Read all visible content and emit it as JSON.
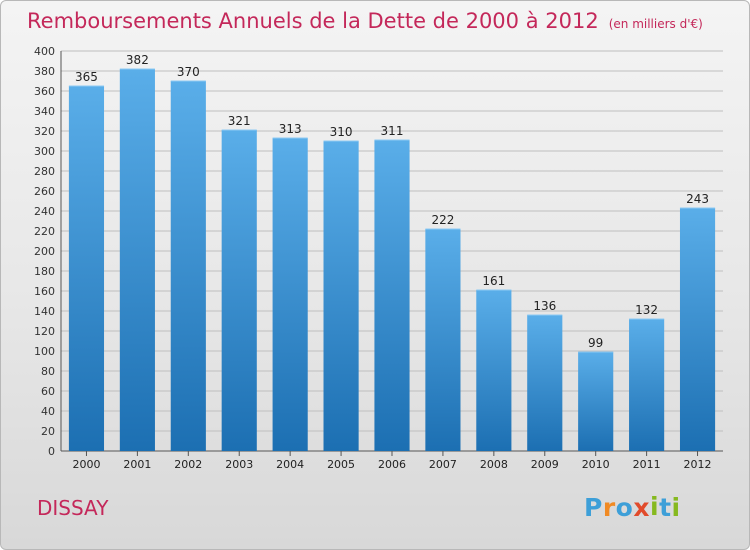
{
  "header": {
    "title": "Remboursements Annuels de la Dette de 2000 à 2012",
    "unit": "(en milliers d'€)"
  },
  "footer": {
    "commune": "DISSAY",
    "logo_text": "Proxiti"
  },
  "colors": {
    "title": "#c4285a",
    "bar_top": "#5aaee9",
    "bar_bottom": "#1c6fb2",
    "grid": "#bfbfbf",
    "axis": "#555555",
    "logo": [
      "#3d9fd8",
      "#f08a24",
      "#3d9fd8",
      "#e14b2b",
      "#86b91f",
      "#3d9fd8",
      "#86b91f"
    ]
  },
  "chart_data": {
    "type": "bar",
    "title": "Remboursements Annuels de la Dette de 2000 à 2012",
    "categories": [
      "2000",
      "2001",
      "2002",
      "2003",
      "2004",
      "2005",
      "2006",
      "2007",
      "2008",
      "2009",
      "2010",
      "2011",
      "2012"
    ],
    "values": [
      365,
      382,
      370,
      321,
      313,
      310,
      311,
      222,
      161,
      136,
      99,
      132,
      243
    ],
    "ylim": [
      0,
      400
    ],
    "ytick_step": 20,
    "grid": true,
    "legend": "none"
  }
}
